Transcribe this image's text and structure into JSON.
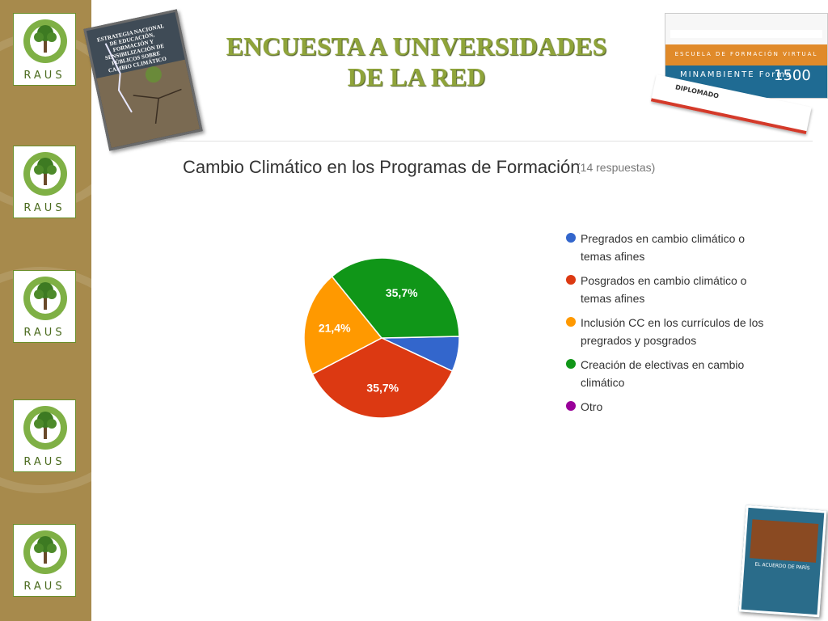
{
  "slide": {
    "title_line1": "ENCUESTA A UNIVERSIDADES",
    "title_line2": "DE LA RED"
  },
  "sidebar": {
    "logo_text": "RAUS",
    "logo_count": 5,
    "colors": {
      "strip": "#a78a4c",
      "logo_border": "#6a8f2a",
      "logo_text": "#4a6a1d"
    }
  },
  "thumbnails": {
    "book_title": "ESTRATEGIA NACIONAL DE EDUCACIÓN, FORMACIÓN Y SENSIBILIZACIÓN DE PÚBLICOS SOBRE CAMBIO CLIMÁTICO",
    "web_band": "ESCUELA DE FORMACIÓN VIRTUAL",
    "web_body": "MINAMBIENTE Forma",
    "web_number": "1500",
    "web_ribbon": "DIPLOMADO",
    "doc_title": "EL ACUERDO DE PARÍS"
  },
  "chart_data": {
    "type": "pie",
    "title": "Cambio Climático en los Programas de Formación",
    "subtitle": "(14 respuestas)",
    "legend_position": "right",
    "slices": [
      {
        "label": "Pregrados en cambio climático o temas afines",
        "value": 7.1,
        "color": "#3366cc",
        "show_label": false
      },
      {
        "label": "Posgrados en cambio climático o temas afines",
        "value": 35.7,
        "color": "#dc3912",
        "show_label": true,
        "data_label": "35,7%"
      },
      {
        "label": "Inclusión CC en los currículos de los pregrados y posgrados",
        "value": 21.4,
        "color": "#ff9900",
        "show_label": true,
        "data_label": "21,4%"
      },
      {
        "label": "Creación de electivas en cambio climático",
        "value": 35.7,
        "color": "#109618",
        "show_label": true,
        "data_label": "35,7%"
      },
      {
        "label": "Otro",
        "value": 0,
        "color": "#990099",
        "show_label": false
      }
    ]
  }
}
